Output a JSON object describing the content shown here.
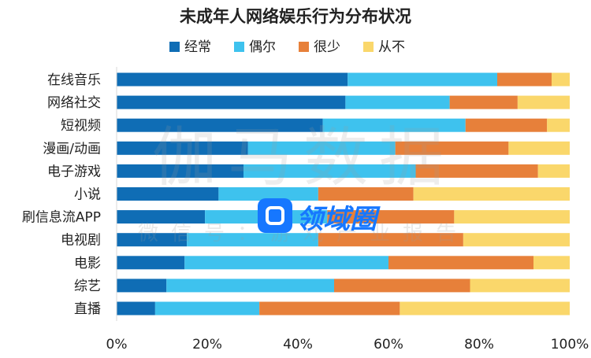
{
  "chart_data": {
    "type": "bar",
    "orientation": "horizontal",
    "stacked": true,
    "title": "未成年人网络娱乐行为分布状况",
    "categories": [
      "在线音乐",
      "网络社交",
      "短视频",
      "漫画/动画",
      "电子游戏",
      "小说",
      "刷信息流APP",
      "电视剧",
      "电影",
      "综艺",
      "直播"
    ],
    "series": [
      {
        "name": "经常",
        "color": "#0f6db5",
        "values": [
          51,
          50.5,
          45.5,
          29,
          28,
          22.5,
          19.5,
          15.5,
          15,
          11,
          8.5
        ]
      },
      {
        "name": "偶尔",
        "color": "#3ec2ee",
        "values": [
          33,
          23,
          31.5,
          32.5,
          38,
          22,
          27,
          29,
          45,
          37,
          23
        ]
      },
      {
        "name": "很少",
        "color": "#e7803a",
        "values": [
          12,
          15,
          18,
          25,
          27,
          21,
          28,
          32,
          32,
          30,
          31
        ]
      },
      {
        "name": "从不",
        "color": "#fad76b",
        "values": [
          4,
          11.5,
          5,
          13.5,
          7,
          34.5,
          25.5,
          23.5,
          8,
          22,
          37.5
        ]
      }
    ],
    "xlim": [
      0,
      100
    ],
    "xticks": [
      "0%",
      "20%",
      "40%",
      "60%",
      "80%",
      "100%"
    ],
    "legend_position": "top",
    "grid": false
  },
  "watermark": {
    "main_text": "伽马数据",
    "sub_text": "微信号：游戏产业报告",
    "logo_text": "领域圈"
  }
}
